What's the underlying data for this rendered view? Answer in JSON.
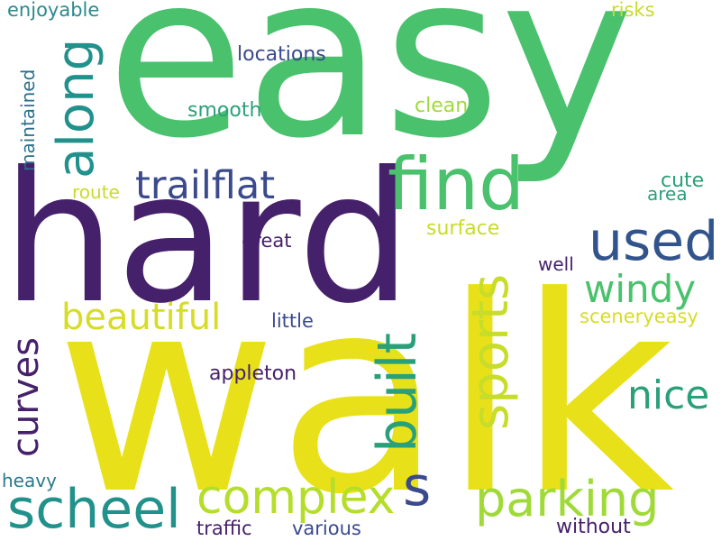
{
  "palette": {
    "background": "#ffffff",
    "dark_purple": "#46216b",
    "indigo": "#3a4a8c",
    "blue": "#32548c",
    "teal": "#21918c",
    "sea_green": "#2aa07a",
    "green": "#4ac16d",
    "lime": "#a0da39",
    "yellow": "#e8e11a"
  },
  "words": [
    {
      "text": "easy",
      "color": "#4ac16d"
    },
    {
      "text": "hard",
      "color": "#46216b"
    },
    {
      "text": "walk",
      "color": "#e8e11a"
    },
    {
      "text": "s",
      "color": "#3a4a8c"
    },
    {
      "text": "find",
      "color": "#4ac16d"
    },
    {
      "text": "along",
      "color": "#21918c"
    },
    {
      "text": "trailflat",
      "color": "#3a4a8c"
    },
    {
      "text": "used",
      "color": "#32548c"
    },
    {
      "text": "sports",
      "color": "#c8dc2a"
    },
    {
      "text": "built",
      "color": "#2aa07a"
    },
    {
      "text": "windy",
      "color": "#4ac16d"
    },
    {
      "text": "beautiful",
      "color": "#d7dc26"
    },
    {
      "text": "nice",
      "color": "#2aa07a"
    },
    {
      "text": "curves",
      "color": "#46216b"
    },
    {
      "text": "scheel",
      "color": "#21918c"
    },
    {
      "text": "complex",
      "color": "#b5de2b"
    },
    {
      "text": "parking",
      "color": "#a0da39"
    },
    {
      "text": "enjoyable",
      "color": "#2a8a8a"
    },
    {
      "text": "risks",
      "color": "#c8dc2a"
    },
    {
      "text": "locations",
      "color": "#3a4a8c"
    },
    {
      "text": "maintained",
      "color": "#2a6f8c"
    },
    {
      "text": "clean",
      "color": "#a0da39"
    },
    {
      "text": "smooth",
      "color": "#2aa07a"
    },
    {
      "text": "cute",
      "color": "#2aa07a"
    },
    {
      "text": "area",
      "color": "#2aa07a"
    },
    {
      "text": "route",
      "color": "#c8dc2a"
    },
    {
      "text": "surface",
      "color": "#c8dc2a"
    },
    {
      "text": "great",
      "color": "#46216b"
    },
    {
      "text": "well",
      "color": "#46216b"
    },
    {
      "text": "little",
      "color": "#3a4a8c"
    },
    {
      "text": "sceneryeasy",
      "color": "#d7dc26"
    },
    {
      "text": "appleton",
      "color": "#46216b"
    },
    {
      "text": "heavy",
      "color": "#2a7a8c"
    },
    {
      "text": "traffic",
      "color": "#46216b"
    },
    {
      "text": "various",
      "color": "#3a4a8c"
    },
    {
      "text": "without",
      "color": "#46216b"
    }
  ]
}
